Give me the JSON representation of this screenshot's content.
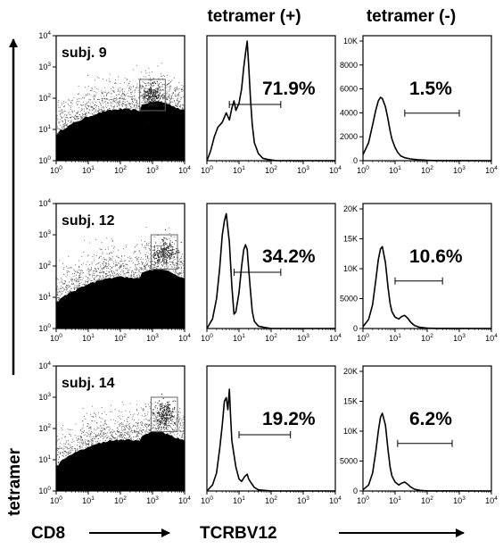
{
  "headers": {
    "col_pos": "tetramer (+)",
    "col_neg": "tetramer (-)"
  },
  "axis_labels": {
    "y_left": "tetramer",
    "x_scatter": "CD8",
    "x_hist": "TCRBV12"
  },
  "chart_data": [
    {
      "type": "scatter",
      "title": "subj. 9",
      "xlabel": "CD8",
      "ylabel": "tetramer",
      "xscale": "log",
      "yscale": "log",
      "xlim": [
        1,
        10000
      ],
      "ylim": [
        1,
        10000
      ],
      "x_ticks": [
        "10^0",
        "10^1",
        "10^2",
        "10^3",
        "10^4"
      ],
      "y_ticks": [
        "10^0",
        "10^1",
        "10^2",
        "10^3",
        "10^4"
      ],
      "gate": {
        "x": [
          400,
          2500
        ],
        "y": [
          40,
          400
        ]
      }
    },
    {
      "type": "line",
      "title": "tetramer (+)",
      "xlabel": "TCRBV12",
      "xscale": "log",
      "xlim": [
        1,
        10000
      ],
      "x_ticks": [
        "10^0",
        "10^1",
        "10^2",
        "10^3",
        "10^4"
      ],
      "percent": "71.9%",
      "gate": [
        5,
        200
      ],
      "x": [
        1,
        1.3,
        1.7,
        2.2,
        3,
        4,
        5,
        6,
        7,
        8,
        10,
        12,
        14,
        16,
        18,
        20,
        23,
        26,
        30,
        40,
        55,
        80,
        150,
        400,
        10000
      ],
      "y": [
        0,
        0.08,
        0.2,
        0.28,
        0.32,
        0.4,
        0.34,
        0.44,
        0.5,
        0.42,
        0.48,
        0.6,
        0.78,
        0.9,
        1.0,
        0.8,
        0.5,
        0.3,
        0.15,
        0.06,
        0.02,
        0.01,
        0,
        0,
        0
      ]
    },
    {
      "type": "line",
      "title": "tetramer (-)",
      "xlabel": "TCRBV12",
      "xscale": "log",
      "xlim": [
        1,
        10000
      ],
      "ylim": [
        0,
        10000
      ],
      "y_ticks": [
        "0",
        "2000",
        "4000",
        "6000",
        "8000",
        "10K"
      ],
      "x_ticks": [
        "10^0",
        "10^1",
        "10^2",
        "10^3",
        "10^4"
      ],
      "percent": "1.5%",
      "gate": [
        20,
        1000
      ],
      "x": [
        1,
        1.5,
        2,
        2.5,
        3,
        3.5,
        4,
        5,
        6,
        7,
        8,
        10,
        12,
        15,
        20,
        30,
        50,
        100,
        200,
        10000
      ],
      "y": [
        500,
        1500,
        3000,
        4200,
        5000,
        5300,
        5200,
        4500,
        3500,
        2500,
        1800,
        1100,
        700,
        400,
        250,
        150,
        80,
        30,
        10,
        0
      ]
    },
    {
      "type": "scatter",
      "title": "subj. 12",
      "xlabel": "CD8",
      "ylabel": "tetramer",
      "xscale": "log",
      "yscale": "log",
      "xlim": [
        1,
        10000
      ],
      "ylim": [
        1,
        10000
      ],
      "x_ticks": [
        "10^0",
        "10^1",
        "10^2",
        "10^3",
        "10^4"
      ],
      "y_ticks": [
        "10^0",
        "10^1",
        "10^2",
        "10^3",
        "10^4"
      ],
      "gate": {
        "x": [
          900,
          6000
        ],
        "y": [
          80,
          1000
        ]
      }
    },
    {
      "type": "line",
      "title": "tetramer (+)",
      "xlabel": "TCRBV12",
      "xscale": "log",
      "xlim": [
        1,
        10000
      ],
      "x_ticks": [
        "10^0",
        "10^1",
        "10^2",
        "10^3",
        "10^4"
      ],
      "percent": "34.2%",
      "gate": [
        7,
        200
      ],
      "x": [
        1,
        1.5,
        2,
        2.5,
        3,
        3.5,
        4,
        5,
        6,
        7,
        8,
        10,
        12,
        14,
        16,
        18,
        20,
        23,
        26,
        30,
        40,
        60,
        100,
        10000
      ],
      "y": [
        0,
        0.08,
        0.25,
        0.5,
        0.78,
        0.9,
        0.96,
        0.72,
        0.35,
        0.12,
        0.14,
        0.3,
        0.52,
        0.66,
        0.7,
        0.66,
        0.5,
        0.3,
        0.14,
        0.06,
        0.02,
        0.01,
        0,
        0
      ]
    },
    {
      "type": "line",
      "title": "tetramer (-)",
      "xlabel": "TCRBV12",
      "xscale": "log",
      "xlim": [
        1,
        10000
      ],
      "ylim": [
        0,
        20000
      ],
      "y_ticks": [
        "0",
        "5000",
        "10K",
        "15K",
        "20K"
      ],
      "x_ticks": [
        "10^0",
        "10^1",
        "10^2",
        "10^3",
        "10^4"
      ],
      "percent": "10.6%",
      "gate": [
        10,
        300
      ],
      "x": [
        1,
        1.5,
        2,
        2.5,
        3,
        3.5,
        4,
        5,
        6,
        7,
        8,
        10,
        13,
        16,
        20,
        25,
        30,
        40,
        60,
        100,
        200,
        10000
      ],
      "y": [
        300,
        1500,
        4000,
        8000,
        11500,
        13300,
        13700,
        11000,
        7000,
        4200,
        2800,
        1900,
        1600,
        2000,
        2200,
        1700,
        1100,
        500,
        200,
        80,
        20,
        0
      ]
    },
    {
      "type": "scatter",
      "title": "subj. 14",
      "xlabel": "CD8",
      "ylabel": "tetramer",
      "xscale": "log",
      "yscale": "log",
      "xlim": [
        1,
        10000
      ],
      "ylim": [
        1,
        10000
      ],
      "x_ticks": [
        "10^0",
        "10^1",
        "10^2",
        "10^3",
        "10^4"
      ],
      "y_ticks": [
        "10^0",
        "10^1",
        "10^2",
        "10^3",
        "10^4"
      ],
      "gate": {
        "x": [
          900,
          6000
        ],
        "y": [
          80,
          1000
        ]
      }
    },
    {
      "type": "line",
      "title": "tetramer (+)",
      "xlabel": "TCRBV12",
      "xscale": "log",
      "xlim": [
        1,
        10000
      ],
      "x_ticks": [
        "10^0",
        "10^1",
        "10^2",
        "10^3",
        "10^4"
      ],
      "percent": "19.2%",
      "gate": [
        10,
        400
      ],
      "x": [
        1,
        1.5,
        2,
        2.5,
        3,
        3.5,
        4,
        4.5,
        5,
        5.5,
        6,
        7,
        8,
        10,
        12,
        15,
        18,
        20,
        25,
        30,
        40,
        60,
        100,
        10000
      ],
      "y": [
        0,
        0.05,
        0.15,
        0.35,
        0.55,
        0.75,
        0.78,
        0.68,
        0.85,
        0.6,
        0.42,
        0.3,
        0.2,
        0.1,
        0.08,
        0.12,
        0.14,
        0.1,
        0.06,
        0.03,
        0.01,
        0.005,
        0,
        0
      ]
    },
    {
      "type": "line",
      "title": "tetramer (-)",
      "xlabel": "TCRBV12",
      "xscale": "log",
      "xlim": [
        1,
        10000
      ],
      "ylim": [
        0,
        20000
      ],
      "y_ticks": [
        "0",
        "5000",
        "10K",
        "15K",
        "20K"
      ],
      "x_ticks": [
        "10^0",
        "10^1",
        "10^2",
        "10^3",
        "10^4"
      ],
      "percent": "6.2%",
      "gate": [
        12,
        600
      ],
      "x": [
        1,
        1.5,
        2,
        2.5,
        3,
        3.5,
        4,
        5,
        6,
        7,
        8,
        10,
        13,
        16,
        20,
        25,
        30,
        40,
        60,
        100,
        10000
      ],
      "y": [
        200,
        1000,
        3000,
        6500,
        10000,
        12300,
        13000,
        11000,
        7000,
        4000,
        2500,
        1500,
        1000,
        1300,
        1500,
        1100,
        700,
        300,
        100,
        20,
        0
      ]
    }
  ]
}
